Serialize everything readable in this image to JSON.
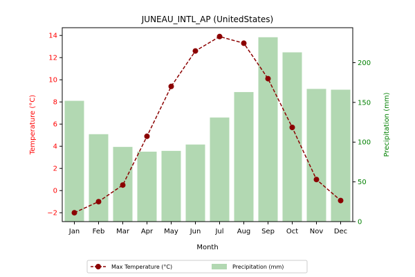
{
  "chart_data": {
    "type": "bar+line",
    "title": "JUNEAU_INTL_AP (UnitedStates)",
    "xlabel": "Month",
    "y_left_label": "Temperature (°C)",
    "y_right_label": "Precipitation (mm)",
    "categories": [
      "Jan",
      "Feb",
      "Mar",
      "Apr",
      "May",
      "Jun",
      "Jul",
      "Aug",
      "Sep",
      "Oct",
      "Nov",
      "Dec"
    ],
    "y_left_range": [
      -2.8,
      14.7
    ],
    "y_left_ticks": [
      -2,
      0,
      2,
      4,
      6,
      8,
      10,
      12,
      14
    ],
    "y_right_range": [
      0,
      244
    ],
    "y_right_ticks": [
      0,
      50,
      100,
      150,
      200
    ],
    "series": [
      {
        "name": "Max Temperature (°C)",
        "type": "line",
        "axis": "left",
        "color": "#8b0000",
        "values": [
          -2.0,
          -1.0,
          0.5,
          4.9,
          9.4,
          12.6,
          13.9,
          13.3,
          10.1,
          5.7,
          1.0,
          -0.9
        ]
      },
      {
        "name": "Precipitation (mm)",
        "type": "bar",
        "axis": "right",
        "color": "#b2d8b2",
        "values": [
          152,
          110,
          94,
          88,
          89,
          97,
          131,
          163,
          232,
          213,
          167,
          166
        ]
      }
    ],
    "left_axis_color": "#ff0000",
    "right_axis_color": "#008000",
    "legend_position": "bottom-center",
    "grid": false
  }
}
